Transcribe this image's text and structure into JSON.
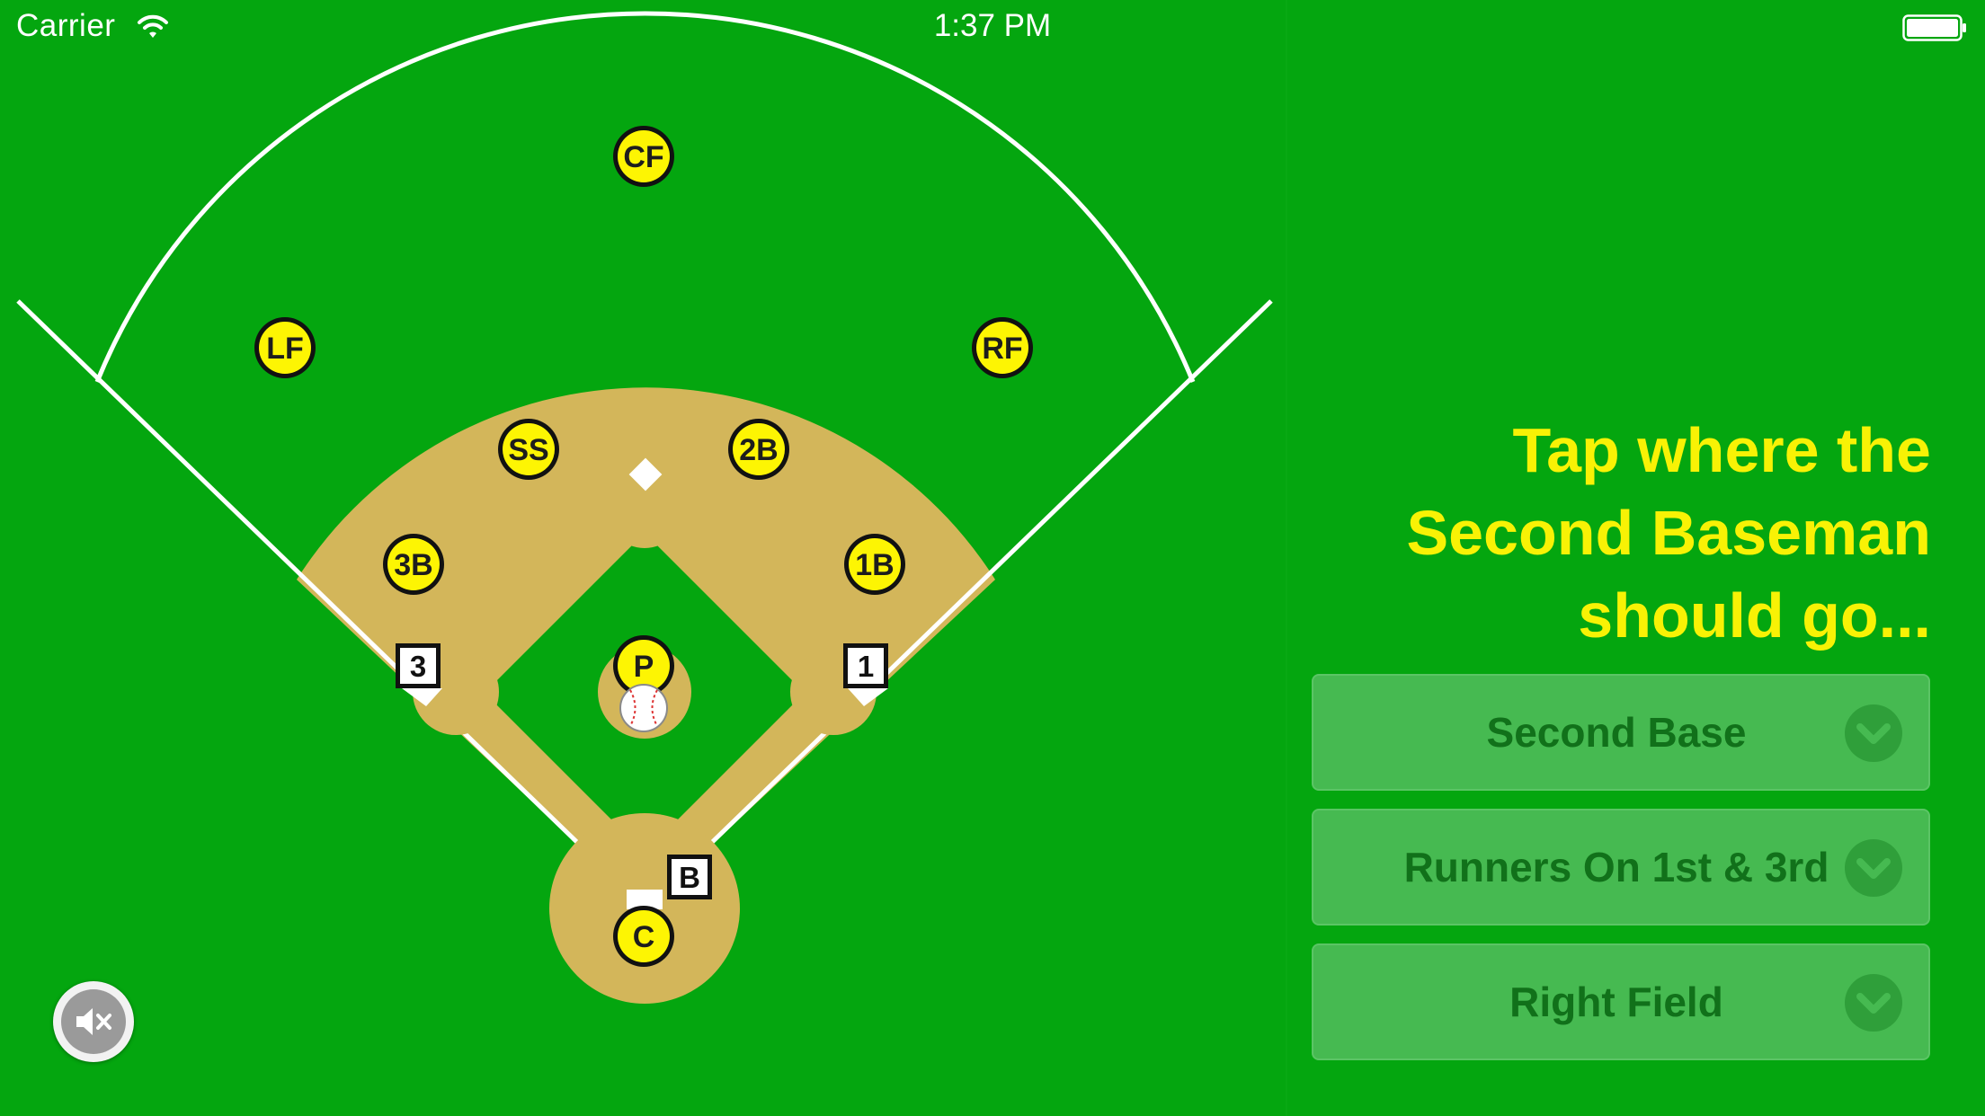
{
  "status_bar": {
    "carrier": "Carrier",
    "time": "1:37 PM",
    "icons": [
      "wifi-icon",
      "battery-icon"
    ]
  },
  "field": {
    "colors": {
      "grass": "#04a60f",
      "dirt": "#d3b65a",
      "lines": "#ffffff",
      "player_fill": "#fdf503",
      "player_stroke": "#111111"
    },
    "players": {
      "cf": "CF",
      "lf": "LF",
      "rf": "RF",
      "ss": "SS",
      "second_base": "2B",
      "third_base": "3B",
      "first_base": "1B",
      "pitcher": "P",
      "catcher": "C"
    },
    "base_markers": {
      "third": "3",
      "first": "1",
      "batter": "B"
    },
    "ball_icon": "baseball-icon",
    "second_base_icon": "base-diamond-icon"
  },
  "mute_button": {
    "icon": "speaker-muted-icon"
  },
  "prompt": {
    "line1": "Tap where the",
    "line2": "Second Baseman",
    "line3": "should go...",
    "color": "#f8f205"
  },
  "answers": [
    {
      "label": "Second Base",
      "icon": "chevron-down-icon"
    },
    {
      "label": "Runners On 1st & 3rd",
      "icon": "chevron-down-icon"
    },
    {
      "label": "Right Field",
      "icon": "chevron-down-icon"
    }
  ]
}
